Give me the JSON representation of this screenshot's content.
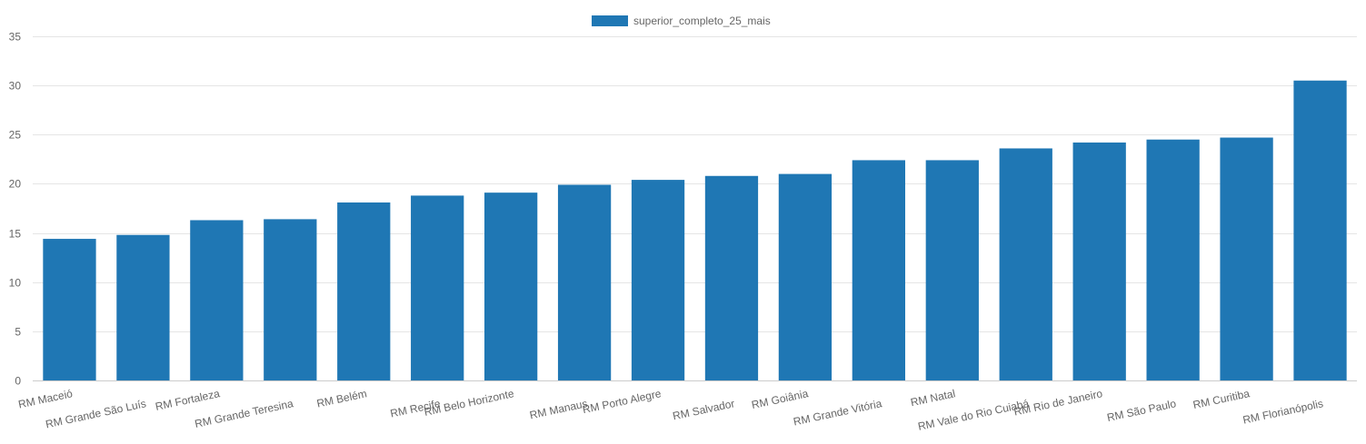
{
  "chart_data": {
    "type": "bar",
    "categories": [
      "RM Maceió",
      "RM Grande São Luís",
      "RM Fortaleza",
      "RM Grande Teresina",
      "RM Belém",
      "RM Recife",
      "RM Belo Horizonte",
      "RM Manaus",
      "RM Porto Alegre",
      "RM Salvador",
      "RM Goiânia",
      "RM Grande Vitória",
      "RM Natal",
      "RM Vale do Rio Cuiabá",
      "RM Rio de Janeiro",
      "RM São Paulo",
      "RM Curitiba",
      "RM Florianópolis"
    ],
    "series": [
      {
        "name": "superior_completo_25_mais",
        "color": "#1f77b4",
        "values": [
          14.4,
          14.8,
          16.3,
          16.4,
          18.1,
          18.8,
          19.1,
          19.9,
          20.4,
          20.8,
          21.0,
          22.4,
          22.4,
          23.6,
          24.2,
          24.5,
          24.7,
          30.5
        ]
      }
    ],
    "ylim": [
      0,
      35
    ],
    "yticks": [
      0,
      5,
      10,
      15,
      20,
      25,
      30,
      35
    ],
    "grid": true,
    "legend": "top-center",
    "title": "",
    "xlabel": "",
    "ylabel": ""
  }
}
